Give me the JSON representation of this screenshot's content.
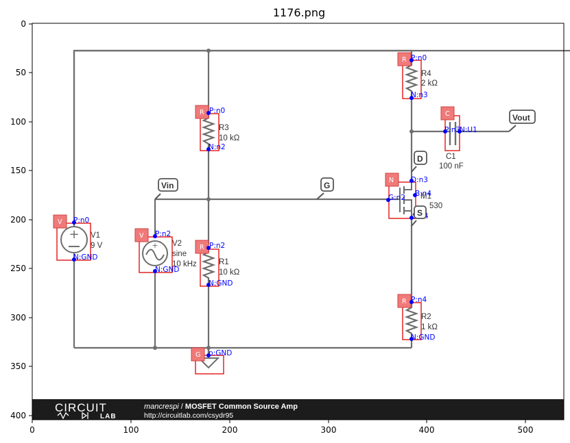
{
  "title": "1176.png",
  "axes": {
    "x_ticks": [
      "0",
      "100",
      "200",
      "300",
      "400",
      "500"
    ],
    "y_ticks": [
      "0",
      "50",
      "100",
      "150",
      "200",
      "250",
      "300",
      "350",
      "400"
    ]
  },
  "components": {
    "R4": {
      "badge": "R",
      "name": "R4",
      "value": "2 kΩ",
      "pin_p": "P:n0",
      "pin_n": "N:n3"
    },
    "R3": {
      "badge": "R",
      "name": "R3",
      "value": "10 kΩ",
      "pin_p": "P:n0",
      "pin_n": "N:n2"
    },
    "R1": {
      "badge": "R",
      "name": "R1",
      "value": "10 kΩ",
      "pin_p": "P:n2",
      "pin_n": "N:GND"
    },
    "R2": {
      "badge": "R",
      "name": "R2",
      "value": "1 kΩ",
      "pin_p": "P:n4",
      "pin_n": "N:GND"
    },
    "C1": {
      "badge": "C",
      "name": "C1",
      "value": "100 nF",
      "pin_p": "P:n3",
      "pin_n": "N:U1"
    },
    "V1": {
      "badge": "V",
      "name": "V1",
      "value": "9 V",
      "pin_p": "P:n0",
      "pin_n": "N:GND"
    },
    "V2": {
      "badge": "V",
      "name": "V2",
      "value_1": "sine",
      "value_2": "10 kHz",
      "pin_p": "P:n2",
      "pin_n": "N:GND"
    },
    "M1": {
      "badge": "N",
      "name": "M1",
      "part": "530",
      "pin_d": "D:n3",
      "pin_g": "G:n2",
      "pin_b": "B:n4",
      "pin_s": "S:n4"
    },
    "GND": {
      "badge": "G",
      "pin": "p:GND"
    }
  },
  "net_tags": {
    "vin": "Vin",
    "vout": "Vout",
    "g": "G",
    "d": "D",
    "s": "S"
  },
  "footer": {
    "logo_top": "CIRCUIT",
    "logo_bottom": "LAB",
    "author": "mancrespi",
    "separator": " / ",
    "circuit_title": "MOSFET Common Source Amp",
    "url": "http://circuitlab.com/csydr95"
  }
}
